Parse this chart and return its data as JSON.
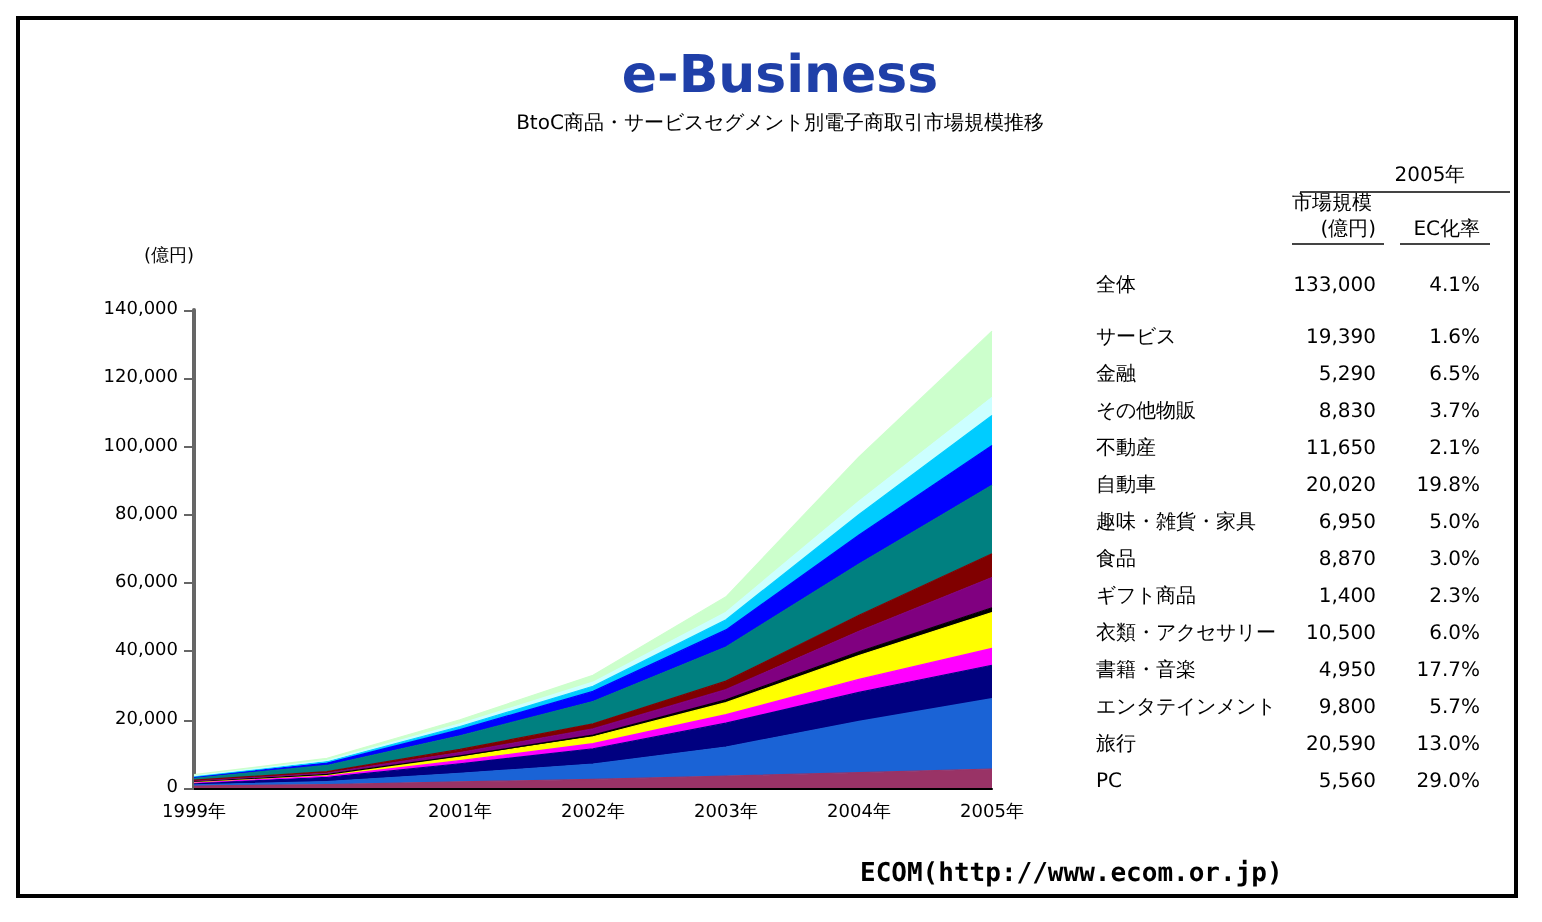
{
  "chart_data": {
    "type": "area",
    "title": "e-Business",
    "subtitle": "BtoC商品・サービスセグメント別電子商取引市場規模推移",
    "ylabel": "(億円)",
    "categories": [
      "1999年",
      "2000年",
      "2001年",
      "2002年",
      "2003年",
      "2004年",
      "2005年"
    ],
    "stacked": true,
    "legend": false,
    "grid": false,
    "marker": "none",
    "ylim": [
      0,
      140000
    ],
    "yticks": [
      {
        "value": 0,
        "label": "0"
      },
      {
        "value": 20000,
        "label": "20,000"
      },
      {
        "value": 40000,
        "label": "40,000"
      },
      {
        "value": 60000,
        "label": "60,000"
      },
      {
        "value": 80000,
        "label": "80,000"
      },
      {
        "value": 100000,
        "label": "100,000"
      },
      {
        "value": 120000,
        "label": "120,000"
      },
      {
        "value": 140000,
        "label": "140,000"
      }
    ],
    "series": [
      {
        "name": "PC",
        "color": "#993366",
        "values": [
          600,
          1000,
          1800,
          2500,
          3500,
          4500,
          5560
        ]
      },
      {
        "name": "旅行",
        "color": "#1a63d6",
        "values": [
          300,
          900,
          2500,
          4500,
          8500,
          15000,
          20590
        ]
      },
      {
        "name": "エンタテインメント",
        "color": "#000080",
        "values": [
          500,
          1200,
          2800,
          4500,
          7000,
          8500,
          9800
        ]
      },
      {
        "name": "書籍・音楽",
        "color": "#ff00ff",
        "values": [
          200,
          400,
          900,
          1500,
          2500,
          3800,
          4950
        ]
      },
      {
        "name": "衣類・アクセサリー",
        "color": "#ffff00",
        "values": [
          200,
          400,
          1100,
          2000,
          3500,
          7000,
          10500
        ]
      },
      {
        "name": "ギフト商品",
        "color": "#000000",
        "values": [
          100,
          100,
          300,
          500,
          800,
          1100,
          1400
        ]
      },
      {
        "name": "食品",
        "color": "#800080",
        "values": [
          200,
          400,
          1000,
          1800,
          3000,
          6000,
          8870
        ]
      },
      {
        "name": "趣味・雑貨・家具",
        "color": "#800000",
        "values": [
          200,
          400,
          900,
          1500,
          2500,
          4700,
          6950
        ]
      },
      {
        "name": "自動車",
        "color": "#008080",
        "values": [
          600,
          1800,
          4000,
          6500,
          10000,
          15000,
          20020
        ]
      },
      {
        "name": "不動産",
        "color": "#0000ff",
        "values": [
          300,
          700,
          1800,
          3000,
          5000,
          8500,
          11650
        ]
      },
      {
        "name": "その他物販",
        "color": "#00ccff",
        "values": [
          200,
          400,
          900,
          1500,
          3000,
          6000,
          8830
        ]
      },
      {
        "name": "金融",
        "color": "#ccffff",
        "values": [
          200,
          400,
          800,
          1200,
          2200,
          3900,
          5290
        ]
      },
      {
        "name": "サービス",
        "color": "#ccffcc",
        "values": [
          300,
          600,
          1200,
          2000,
          4500,
          13000,
          19390
        ]
      }
    ],
    "annotations": [
      "2005年",
      "市場規模",
      "(億円)",
      "EC化率",
      "全体",
      "133,000",
      "4.1%",
      "19,390",
      "1.6%",
      "5,290",
      "6.5%",
      "8,830",
      "3.7%",
      "11,650",
      "2.1%",
      "20,020",
      "19.8%",
      "6,950",
      "5.0%",
      "8,870",
      "3.0%",
      "1,400",
      "2.3%",
      "10,500",
      "6.0%",
      "4,950",
      "17.7%",
      "9,800",
      "5.7%",
      "20,590",
      "13.0%",
      "5,560",
      "29.0%",
      "ECOM(http://www.ecom.or.jp)"
    ]
  }
}
